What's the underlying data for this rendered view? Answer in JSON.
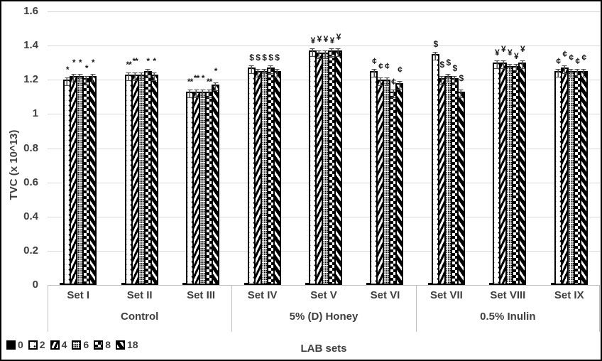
{
  "chart_data": {
    "type": "bar",
    "title": "",
    "ylabel": "TVC (x 10^13)",
    "xlabel": "LAB sets",
    "ylim": [
      0,
      1.6
    ],
    "yticks": [
      "0",
      "0.2",
      "0.4",
      "0.6",
      "0.8",
      "1",
      "1.2",
      "1.4",
      "1.6"
    ],
    "grid": true,
    "legend_position": "bottom-left",
    "series_names": [
      "0",
      "2",
      "4",
      "6",
      "8",
      "18"
    ],
    "patterns": [
      "solid-black",
      "white-sparse-dots",
      "thick-diagonal-stripes",
      "fine-dots",
      "checkerboard",
      "wide-diagonal-stripes"
    ],
    "error_bar_value": 0.02,
    "groups": [
      {
        "label": "Control",
        "sets": [
          {
            "label": "Set I",
            "values": [
              0.01,
              1.2,
              1.22,
              1.22,
              1.21,
              1.22
            ],
            "annotations": [
              "",
              "*",
              "*",
              "*",
              "*",
              "*"
            ]
          },
          {
            "label": "Set II",
            "values": [
              0.01,
              1.23,
              1.23,
              1.23,
              1.25,
              1.23
            ],
            "annotations": [
              "",
              "**",
              "**",
              "",
              "*",
              "*"
            ]
          },
          {
            "label": "Set III",
            "values": [
              0.01,
              1.13,
              1.13,
              1.13,
              1.13,
              1.17
            ],
            "annotations": [
              "",
              "**",
              "**",
              "*",
              "**",
              "*"
            ]
          }
        ]
      },
      {
        "label": "5% (D) Honey",
        "sets": [
          {
            "label": "Set IV",
            "values": [
              0.01,
              1.27,
              1.25,
              1.25,
              1.27,
              1.25
            ],
            "annotations": [
              "",
              "$",
              "$",
              "$",
              "$",
              "$"
            ]
          },
          {
            "label": "Set V",
            "values": [
              0.01,
              1.37,
              1.36,
              1.36,
              1.37,
              1.37
            ],
            "annotations": [
              "",
              "¥",
              "¥",
              "¥",
              "¥",
              "¥"
            ]
          },
          {
            "label": "Set VI",
            "values": [
              0.01,
              1.25,
              1.2,
              1.2,
              1.13,
              1.18
            ],
            "annotations": [
              "",
              "¢",
              "¢",
              "¢",
              "¢",
              "¢"
            ]
          }
        ]
      },
      {
        "label": "0.5% Inulin",
        "sets": [
          {
            "label": "Set VII",
            "values": [
              0.01,
              1.35,
              1.21,
              1.22,
              1.21,
              1.13
            ],
            "annotations": [
              "",
              "$",
              "$",
              "$",
              "$",
              "$"
            ]
          },
          {
            "label": "Set VIII",
            "values": [
              0.01,
              1.3,
              1.3,
              1.28,
              1.28,
              1.3
            ],
            "annotations": [
              "",
              "¥",
              "¥",
              "¥",
              "¥",
              "¥"
            ]
          },
          {
            "label": "Set IX",
            "values": [
              0.01,
              1.25,
              1.27,
              1.25,
              1.25,
              1.25
            ],
            "annotations": [
              "",
              "¢",
              "¢",
              "¢",
              "¢",
              "¢"
            ]
          }
        ]
      }
    ],
    "colors": {
      "bar_fill": "#000000",
      "background": "#ffffff",
      "text": "#3f3f3f",
      "gridline": "#d9d9d9",
      "axis_line": "#bfbfbf",
      "frame_border": "#000000"
    }
  }
}
